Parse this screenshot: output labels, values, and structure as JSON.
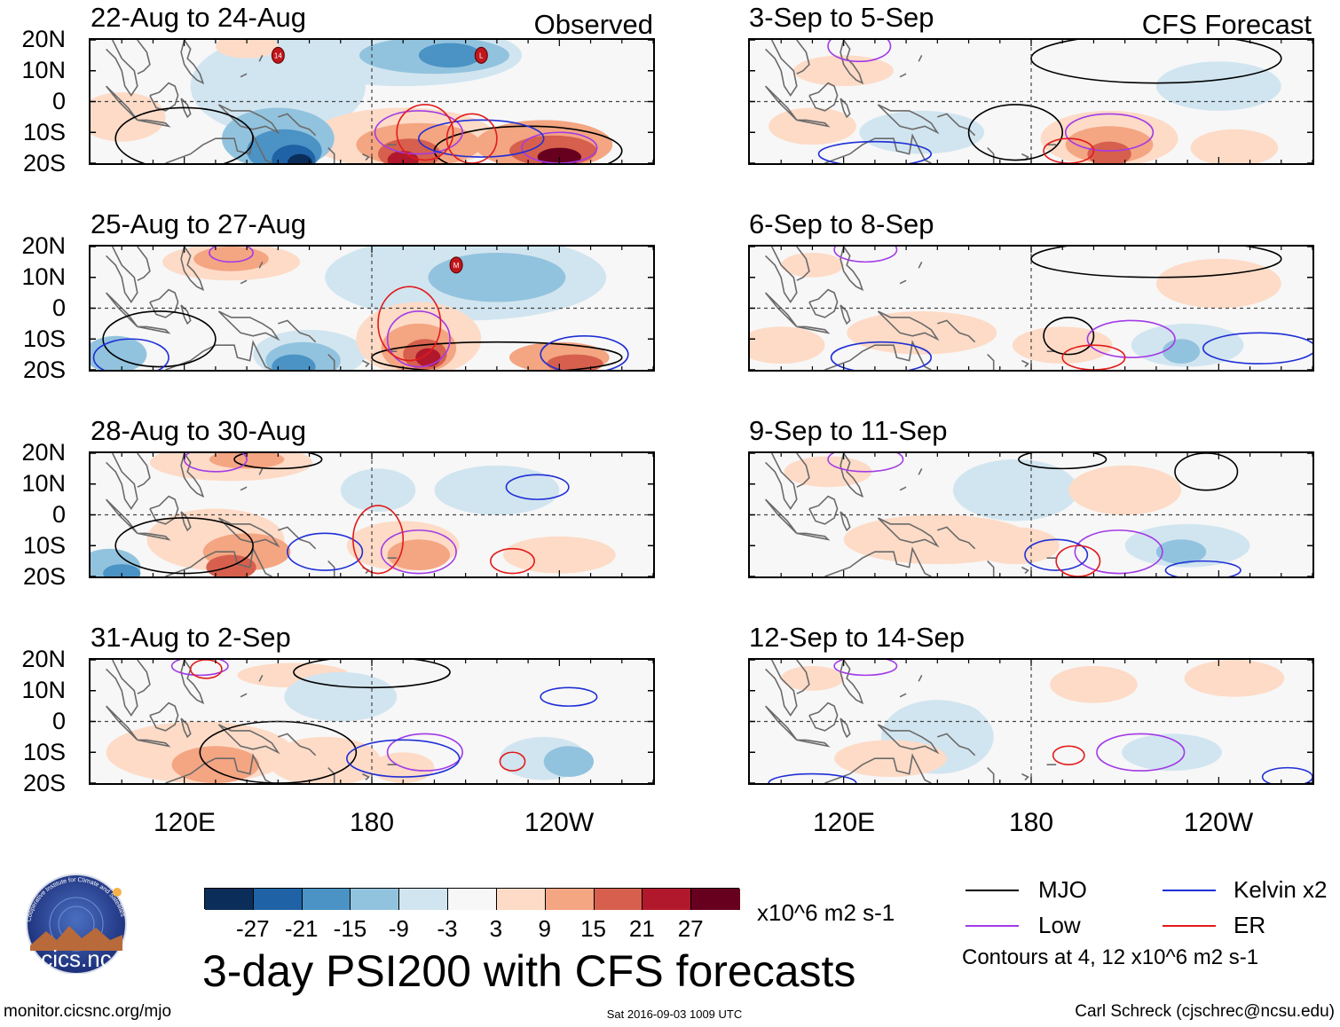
{
  "column_titles": {
    "left": "Observed",
    "right": "CFS Forecast"
  },
  "lat_labels": [
    "20N",
    "10N",
    "0",
    "10S",
    "20S"
  ],
  "lon_labels": [
    "120E",
    "180",
    "120W"
  ],
  "panels_left": [
    {
      "title": "22-Aug to 24-Aug",
      "storms": [
        {
          "label": "14",
          "lon": 150,
          "lat": 15
        },
        {
          "label": "L",
          "lon": -145,
          "lat": 15
        }
      ]
    },
    {
      "title": "25-Aug to 27-Aug",
      "storms": [
        {
          "label": "M",
          "lon": -153,
          "lat": 14
        }
      ]
    },
    {
      "title": "28-Aug to 30-Aug",
      "storms": []
    },
    {
      "title": "31-Aug to 2-Sep",
      "storms": []
    }
  ],
  "panels_right": [
    {
      "title": "3-Sep to 5-Sep"
    },
    {
      "title": "6-Sep to 8-Sep"
    },
    {
      "title": "9-Sep to 11-Sep"
    },
    {
      "title": "12-Sep to 14-Sep"
    }
  ],
  "colorbar": {
    "colors": [
      "#0b2d5a",
      "#1f63a6",
      "#4b93c5",
      "#92c3de",
      "#d1e5f0",
      "#f7f7f7",
      "#fddbc7",
      "#f4a582",
      "#d6604d",
      "#b2182b",
      "#67001f"
    ],
    "labels": [
      "-27",
      "-21",
      "-15",
      "-9",
      "-3",
      "3",
      "9",
      "15",
      "21",
      "27"
    ],
    "units": "x10^6 m2 s-1"
  },
  "legend": {
    "items": [
      {
        "label": "MJO",
        "color": "#000000"
      },
      {
        "label": "Kelvin x2",
        "color": "#1f2fd6"
      },
      {
        "label": "Low",
        "color": "#a23be6"
      },
      {
        "label": "ER",
        "color": "#e21b1b"
      }
    ],
    "note": "Contours at 4, 12 x10^6 m2 s-1"
  },
  "main_title": "3-day PSI200 with CFS forecasts",
  "logo_text": "cics.nc",
  "logo_arc_text": "Cooperative Institute for Climate and Satellites",
  "footer": {
    "left": "monitor.cicsnc.org/mjo",
    "center": "Sat 2016-09-03 1009 UTC",
    "right": "Carl Schreck (cjschrec@ncsu.edu)"
  }
}
